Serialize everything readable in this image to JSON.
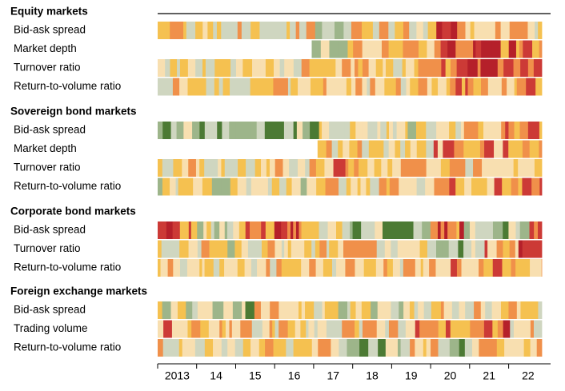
{
  "chart_data": {
    "type": "heatmap",
    "title": "",
    "x_range": [
      2013.0,
      2022.85
    ],
    "x_ticks": [
      "2013",
      "14",
      "15",
      "16",
      "17",
      "18",
      "19",
      "20",
      "21",
      "22"
    ],
    "colorscale": [
      "#4c7a34",
      "#9db58a",
      "#cfd6c0",
      "#f8dfb0",
      "#f5c150",
      "#f0904a",
      "#cc3a36",
      "#b5202a"
    ],
    "groups": [
      {
        "title": "Equity markets",
        "rows": [
          {
            "label": "Bid-ask spread",
            "start": 2013.0,
            "regimes": [
              [
                2013.0,
                3.5
              ],
              [
                2016.9,
                2.6
              ],
              [
                2017.6,
                3.5
              ],
              [
                2020.0,
                6.0
              ],
              [
                2020.8,
                4.0
              ]
            ]
          },
          {
            "label": "Market depth",
            "start": 2016.95,
            "regimes": [
              [
                2016.95,
                2.2
              ],
              [
                2017.7,
                3.5
              ],
              [
                2019.0,
                4.0
              ],
              [
                2020.0,
                6.2
              ],
              [
                2021.3,
                5.2
              ]
            ]
          },
          {
            "label": "Turnover ratio",
            "start": 2013.0,
            "regimes": [
              [
                2013.0,
                3.2
              ],
              [
                2016.9,
                3.8
              ],
              [
                2020.0,
                5.3
              ],
              [
                2021.4,
                5.6
              ]
            ]
          },
          {
            "label": "Return-to-volume ratio",
            "start": 2013.0,
            "regimes": [
              [
                2013.0,
                3.2
              ],
              [
                2017.0,
                3.6
              ],
              [
                2020.0,
                4.8
              ],
              [
                2021.0,
                4.3
              ]
            ]
          }
        ]
      },
      {
        "title": "Sovereign bond markets",
        "rows": [
          {
            "label": "Bid-ask spread",
            "start": 2013.0,
            "regimes": [
              [
                2013.0,
                1.3
              ],
              [
                2017.0,
                2.8
              ],
              [
                2020.0,
                3.6
              ],
              [
                2021.8,
                5.0
              ]
            ]
          },
          {
            "label": "Market depth",
            "start": 2017.1,
            "regimes": [
              [
                2017.1,
                3.3
              ],
              [
                2020.0,
                4.6
              ],
              [
                2021.8,
                5.4
              ]
            ]
          },
          {
            "label": "Turnover ratio",
            "start": 2013.0,
            "regimes": [
              [
                2013.0,
                3.3
              ],
              [
                2017.0,
                4.3
              ],
              [
                2020.0,
                3.7
              ],
              [
                2022.0,
                3.5
              ]
            ]
          },
          {
            "label": "Return-to-volume ratio",
            "start": 2013.0,
            "regimes": [
              [
                2013.0,
                2.6
              ],
              [
                2017.0,
                3.6
              ],
              [
                2020.0,
                4.2
              ],
              [
                2021.5,
                5.2
              ]
            ]
          }
        ]
      },
      {
        "title": "Corporate bond markets",
        "rows": [
          {
            "label": "Bid-ask spread",
            "start": 2013.0,
            "regimes": [
              [
                2013.0,
                5.6
              ],
              [
                2014.0,
                2.4
              ],
              [
                2015.0,
                5.3
              ],
              [
                2016.8,
                3.1
              ],
              [
                2017.8,
                1.4
              ],
              [
                2019.8,
                5.8
              ],
              [
                2020.8,
                2.3
              ],
              [
                2021.4,
                1.3
              ],
              [
                2022.3,
                5.0
              ]
            ]
          },
          {
            "label": "Turnover ratio",
            "start": 2013.0,
            "regimes": [
              [
                2013.0,
                3.1
              ],
              [
                2016.0,
                3.8
              ],
              [
                2019.4,
                2.8
              ],
              [
                2020.1,
                1.2
              ],
              [
                2021.2,
                4.8
              ],
              [
                2022.2,
                5.8
              ]
            ]
          },
          {
            "label": "Return-to-volume ratio",
            "start": 2013.0,
            "regimes": [
              [
                2013.0,
                3.2
              ],
              [
                2016.0,
                3.6
              ],
              [
                2019.0,
                3.8
              ],
              [
                2020.2,
                4.3
              ],
              [
                2021.6,
                3.9
              ]
            ]
          }
        ]
      },
      {
        "title": "Foreign exchange markets",
        "rows": [
          {
            "label": "Bid-ask spread",
            "start": 2013.0,
            "regimes": [
              [
                2013.0,
                2.8
              ],
              [
                2014.3,
                1.6
              ],
              [
                2015.4,
                3.8
              ],
              [
                2017.0,
                2.8
              ],
              [
                2019.8,
                3.4
              ]
            ]
          },
          {
            "label": "Trading volume",
            "start": 2013.0,
            "regimes": [
              [
                2013.0,
                4.2
              ],
              [
                2015.4,
                3.6
              ],
              [
                2017.0,
                3.4
              ],
              [
                2019.6,
                4.3
              ],
              [
                2020.8,
                5.5
              ],
              [
                2021.9,
                3.4
              ]
            ]
          },
          {
            "label": "Return-to-volume ratio",
            "start": 2013.0,
            "regimes": [
              [
                2013.0,
                3.6
              ],
              [
                2017.5,
                1.5
              ],
              [
                2019.4,
                3.7
              ],
              [
                2020.1,
                1.5
              ],
              [
                2021.0,
                3.6
              ]
            ]
          }
        ]
      }
    ]
  }
}
